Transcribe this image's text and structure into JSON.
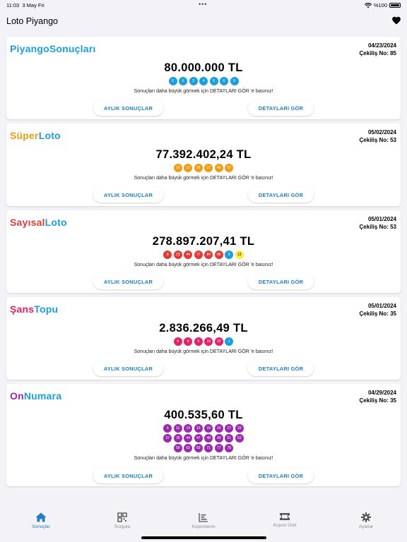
{
  "status_bar": {
    "time": "11:03",
    "date": "3 May Fri",
    "dots": "•••",
    "battery": "%100"
  },
  "nav": {
    "title": "Loto Piyango"
  },
  "colors": {
    "accent": "#1f7fc2",
    "blue": "#1a9ee0",
    "orange": "#f39c12",
    "red": "#e53935",
    "pink": "#e91e63",
    "purple": "#9c27b0",
    "yellow": "#ffeb3b"
  },
  "cards": [
    {
      "title_a": "Piyango",
      "title_b": "Sonuçları",
      "date": "04/23/2024",
      "draw": "Çekiliş No: 85",
      "amount": "80.000.000 TL",
      "balls": [
        "0",
        "0",
        "3",
        "4",
        "5",
        "6",
        "9"
      ],
      "hint": "Sonuçları daha büyük görmek için DETAYLARI GÖR 'e basınız!",
      "monthly": "AYLIK SONUÇLAR",
      "details": "DETAYLARI GÖR"
    },
    {
      "title_a": "Süper",
      "title_b": "Loto",
      "date": "05/02/2024",
      "draw": "Çekiliş No: 53",
      "amount": "77.392.402,24 TL",
      "balls": [
        "16",
        "17",
        "28",
        "37",
        "46",
        "57"
      ],
      "hint": "Sonuçları daha büyük görmek için DETAYLARI GÖR 'e basınız!",
      "monthly": "AYLIK SONUÇLAR",
      "details": "DETAYLARI GÖR"
    },
    {
      "title_a": "Sayısal",
      "title_b": "Loto",
      "date": "05/01/2024",
      "draw": "Çekiliş No: 53",
      "amount": "278.897.207,41 TL",
      "balls": [
        "8",
        "23",
        "44",
        "77",
        "84",
        "86",
        "9",
        "13"
      ],
      "hint": "Sonuçları daha büyük görmek için DETAYLARI GÖR 'e basınız!",
      "monthly": "AYLIK SONUÇLAR",
      "details": "DETAYLARI GÖR"
    },
    {
      "title_a": "Şans",
      "title_b": "Topu",
      "date": "05/01/2024",
      "draw": "Çekiliş No: 35",
      "amount": "2.836.266,49 TL",
      "balls": [
        "6",
        "8",
        "9",
        "19",
        "32",
        "1"
      ],
      "hint": "Sonuçları daha büyük görmek için DETAYLARI GÖR 'e basınız!",
      "monthly": "AYLIK SONUÇLAR",
      "details": "DETAYLARI GÖR"
    },
    {
      "title_a": "On",
      "title_b": "Numara",
      "date": "04/29/2024",
      "draw": "Çekiliş No: 35",
      "amount": "400.535,60 TL",
      "balls": [
        "6",
        "11",
        "14",
        "15",
        "16",
        "24",
        "27",
        "33",
        "37",
        "39",
        "44",
        "47",
        "48",
        "49",
        "51",
        "53",
        "58",
        "62",
        "69",
        "71",
        "77",
        "78"
      ],
      "hint": "Sonuçları daha büyük görmek için DETAYLARI GÖR 'e basınız!",
      "monthly": "AYLIK SONUÇLAR",
      "details": "DETAYLARI GÖR"
    }
  ],
  "tabs": [
    {
      "label": "Sonuçlar",
      "icon": "home-icon",
      "active": true
    },
    {
      "label": "Sorgula",
      "icon": "qr-code-icon",
      "active": false
    },
    {
      "label": "Kuponlarım",
      "icon": "list-chart-icon",
      "active": false
    },
    {
      "label": "Kupon Üret",
      "icon": "ticket-icon",
      "active": false
    },
    {
      "label": "Ayarlar",
      "icon": "gear-icon",
      "active": false
    }
  ]
}
